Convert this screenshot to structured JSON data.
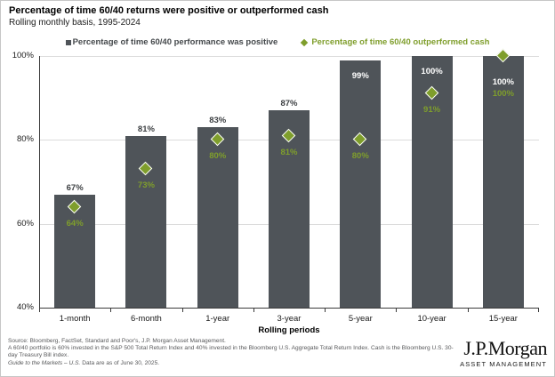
{
  "header": {
    "title": "Percentage of time 60/40 returns were positive or outperformed cash",
    "subtitle": "Rolling monthly basis, 1995-2024"
  },
  "chart_data": {
    "type": "bar",
    "title": "Percentage of time 60/40 returns were positive or outperformed cash",
    "categories": [
      "1-month",
      "6-month",
      "1-year",
      "3-year",
      "5-year",
      "10-year",
      "15-year"
    ],
    "series": [
      {
        "name": "Percentage of time 60/40 performance was positive",
        "type": "bar",
        "color": "#4f5459",
        "values": [
          67,
          81,
          83,
          87,
          99,
          100,
          100
        ],
        "value_label_position": [
          "above",
          "above",
          "above",
          "above",
          "inside",
          "inside",
          "inside"
        ]
      },
      {
        "name": "Percentage of time 60/40 outperformed cash",
        "type": "scatter",
        "marker": "diamond",
        "color": "#7f9e2c",
        "values": [
          64,
          73,
          80,
          81,
          80,
          91,
          100
        ]
      }
    ],
    "xlabel": "Rolling periods",
    "ylabel": "",
    "ylim": [
      40,
      100
    ],
    "yticks": [
      40,
      60,
      80,
      100
    ],
    "ytick_suffix": "%",
    "value_label_suffix": "%",
    "grid": "horizontal",
    "legend_position": "top"
  },
  "footer": {
    "source": "Source: Bloomberg, FactSet, Standard and Poor's, J.P. Morgan Asset Management.",
    "definition": "A 60/40 portfolio is 60% invested in the S&P 500 Total Return Index and 40% invested in the Bloomberg U.S. Aggregate Total Return Index. Cash is the Bloomberg U.S. 30-day Treasury Bill index.",
    "gtm_italic": "Guide to the Markets – U.S.",
    "gtm_rest": " Data are as of June 30, 2025."
  },
  "branding": {
    "logo": "J.P.Morgan",
    "division": "ASSET MANAGEMENT"
  },
  "colors": {
    "bar": "#4f5459",
    "marker_green": "#7f9e2c",
    "gridline": "#dcdcdc",
    "axis": "#3a3a3a"
  }
}
